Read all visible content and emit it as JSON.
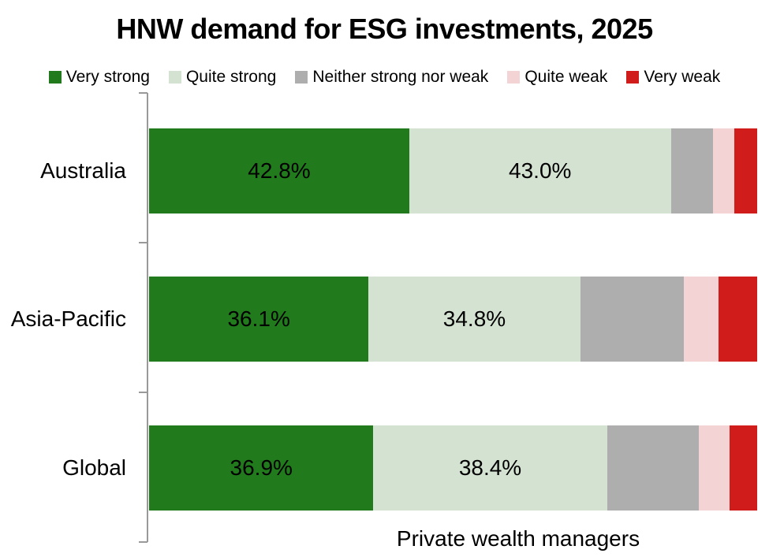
{
  "title": "HNW demand for ESG investments, 2025",
  "chart_data": {
    "type": "bar",
    "stacked": true,
    "orientation": "horizontal",
    "title": "HNW demand for ESG investments, 2025",
    "xlabel": "Private wealth managers",
    "ylabel": "",
    "xlim": [
      0,
      100
    ],
    "grid": false,
    "legend_position": "top",
    "categories": [
      "Australia",
      "Asia-Pacific",
      "Global"
    ],
    "series": [
      {
        "name": "Very strong",
        "color": "#217a1c",
        "values": [
          42.8,
          36.1,
          36.9
        ],
        "labels": [
          "42.8%",
          "36.1%",
          "36.9%"
        ]
      },
      {
        "name": "Quite strong",
        "color": "#d4e3d1",
        "values": [
          43.0,
          34.8,
          38.4
        ],
        "labels": [
          "43.0%",
          "34.8%",
          "38.4%"
        ]
      },
      {
        "name": "Neither strong nor weak",
        "color": "#aeaeae",
        "values": [
          6.9,
          17.0,
          15.1
        ],
        "labels": [
          "",
          "",
          ""
        ]
      },
      {
        "name": "Quite weak",
        "color": "#f3d3d3",
        "values": [
          3.5,
          5.7,
          5.0
        ],
        "labels": [
          "",
          "",
          ""
        ]
      },
      {
        "name": "Very weak",
        "color": "#d11c1c",
        "values": [
          3.8,
          6.4,
          4.6
        ],
        "labels": [
          "",
          "",
          ""
        ]
      }
    ]
  }
}
